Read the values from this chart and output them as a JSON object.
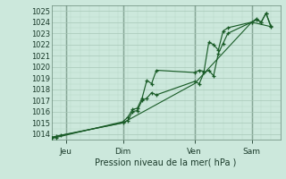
{
  "xlabel": "Pression niveau de la mer( hPa )",
  "bg_color": "#cce8dc",
  "grid_color": "#a8c8b8",
  "grid_minor_color": "#b8d8c8",
  "line_color": "#1a5c28",
  "vline_color": "#3a5a4a",
  "ylim": [
    1013.5,
    1025.5
  ],
  "yticks": [
    1014,
    1015,
    1016,
    1017,
    1018,
    1019,
    1020,
    1021,
    1022,
    1023,
    1024,
    1025
  ],
  "xlim": [
    0,
    192
  ],
  "day_labels": [
    "Jeu",
    "Dim",
    "Ven",
    "Sam"
  ],
  "day_positions": [
    12,
    60,
    120,
    168
  ],
  "series1_x": [
    0,
    4,
    8,
    60,
    64,
    68,
    72,
    76,
    80,
    84,
    88,
    120,
    124,
    128,
    132,
    136,
    140,
    144,
    148,
    168,
    172,
    176,
    180,
    184
  ],
  "series1_y": [
    1013.7,
    1013.8,
    1013.9,
    1015.0,
    1015.2,
    1016.0,
    1016.1,
    1017.0,
    1017.2,
    1017.7,
    1017.5,
    1018.7,
    1018.5,
    1019.5,
    1019.7,
    1019.2,
    1021.2,
    1022.1,
    1023.0,
    1024.0,
    1024.3,
    1024.0,
    1024.8,
    1023.7
  ],
  "series2_x": [
    0,
    4,
    60,
    64,
    68,
    72,
    76,
    80,
    84,
    88,
    120,
    124,
    128,
    132,
    136,
    140,
    144,
    148,
    168,
    172,
    176,
    180,
    184
  ],
  "series2_y": [
    1013.7,
    1013.7,
    1015.1,
    1015.5,
    1016.2,
    1016.3,
    1017.2,
    1018.8,
    1018.5,
    1019.7,
    1019.5,
    1019.7,
    1019.6,
    1022.2,
    1022.0,
    1021.5,
    1023.2,
    1023.5,
    1024.0,
    1024.2,
    1024.0,
    1024.8,
    1023.6
  ],
  "series3_x": [
    0,
    60,
    120,
    168,
    184
  ],
  "series3_y": [
    1013.7,
    1015.0,
    1018.5,
    1024.0,
    1023.6
  ]
}
